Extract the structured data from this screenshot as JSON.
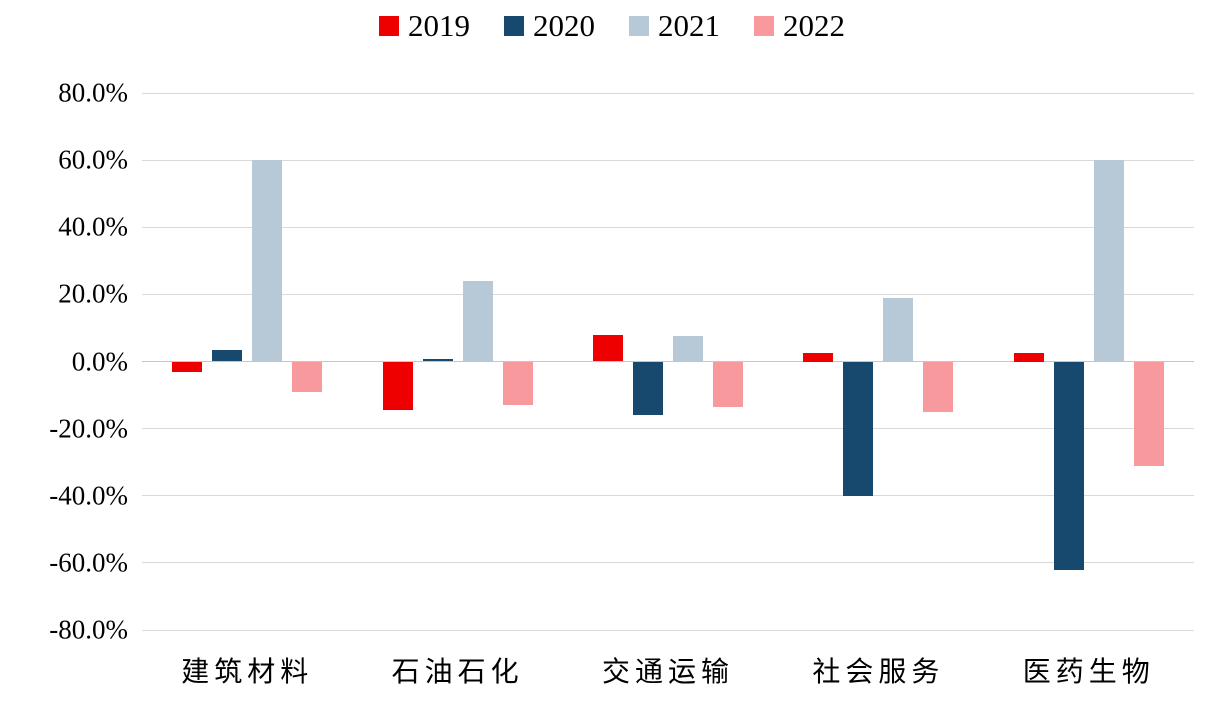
{
  "chart_data": {
    "type": "bar",
    "title": "",
    "categories": [
      "建筑材料",
      "石油石化",
      "交通运输",
      "社会服务",
      "医药生物"
    ],
    "series": [
      {
        "name": "2019",
        "color": "#ee0000",
        "values": [
          -3.0,
          -14.5,
          8.0,
          2.5,
          2.5
        ]
      },
      {
        "name": "2020",
        "color": "#17486d",
        "values": [
          3.3,
          0.8,
          -16.0,
          -40.0,
          -62.0
        ]
      },
      {
        "name": "2021",
        "color": "#b7c9d7",
        "values": [
          60.0,
          24.0,
          7.5,
          19.0,
          60.0
        ]
      },
      {
        "name": "2022",
        "color": "#f8999e",
        "values": [
          -9.0,
          -13.0,
          -13.5,
          -15.0,
          -31.0
        ]
      }
    ],
    "xlabel": "",
    "ylabel": "",
    "ylim": [
      -80,
      80
    ],
    "ytick_step": 20,
    "ytick_labels": [
      "80.0%",
      "60.0%",
      "40.0%",
      "20.0%",
      "0.0%",
      "-20.0%",
      "-40.0%",
      "-60.0%",
      "-80.0%"
    ],
    "grid": true,
    "legend_position": "top",
    "colors": {
      "gridline": "#d9d9d9",
      "zero_line": "#c6c6c6",
      "background": "#ffffff",
      "text": "#000000"
    }
  }
}
